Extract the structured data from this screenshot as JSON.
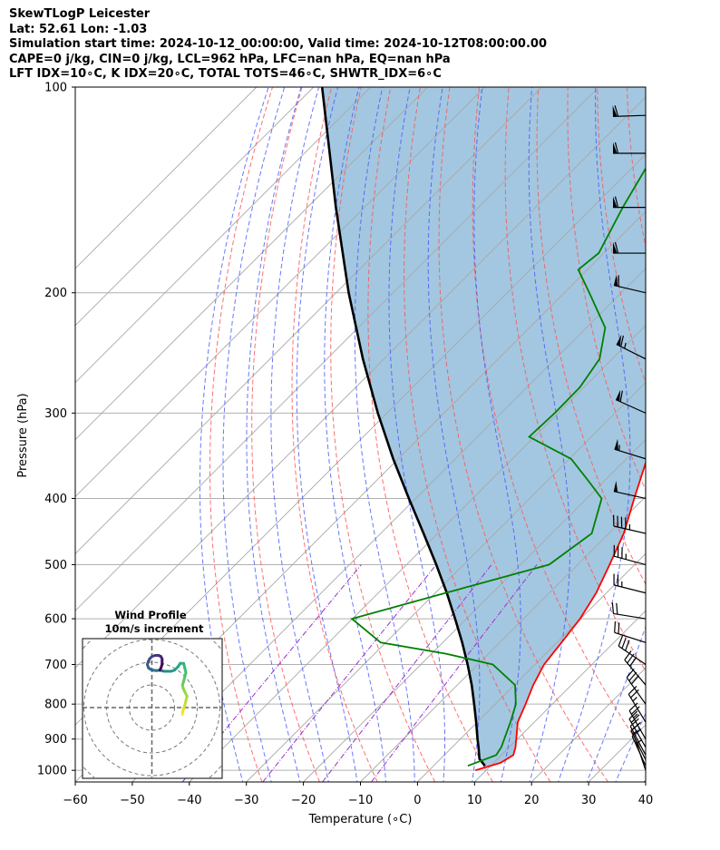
{
  "title": {
    "line1": "SkewTLogP Leicester",
    "line2": "Lat: 52.61   Lon: -1.03",
    "line3": "Simulation start time: 2024-10-12_00:00:00, Valid time: 2024-10-12T08:00:00.00",
    "line4": "CAPE=0 j/kg, CIN=0 j/kg, LCL=962 hPa, LFC=nan hPa, EQ=nan hPa",
    "line5": "LFT IDX=10∘C, K IDX=20∘C, TOTAL TOTS=46∘C, SHWTR_IDX=6∘C"
  },
  "chart_data": {
    "type": "skew-t log-p",
    "xlabel": "Temperature (∘C)",
    "ylabel": "Pressure (hPa)",
    "x_ticks": [
      "−60",
      "−50",
      "−40",
      "−30",
      "−20",
      "−10",
      "0",
      "10",
      "20",
      "30",
      "40"
    ],
    "x_tick_values": [
      -60,
      -50,
      -40,
      -30,
      -20,
      -10,
      0,
      10,
      20,
      30,
      40
    ],
    "y_ticks": [
      "100",
      "200",
      "300",
      "400",
      "500",
      "600",
      "700",
      "800",
      "900",
      "1000"
    ],
    "y_tick_values": [
      100,
      200,
      300,
      400,
      500,
      600,
      700,
      800,
      900,
      1000
    ],
    "xlim": [
      -60,
      40
    ],
    "ylim_hpa": [
      1040,
      100
    ],
    "grid": true,
    "temperature": {
      "color": "#ff0000",
      "pressure": [
        1000,
        975,
        950,
        925,
        900,
        850,
        800,
        750,
        700,
        650,
        600,
        550,
        500,
        450,
        400,
        350,
        300,
        275,
        250,
        225,
        200,
        175,
        150,
        125,
        100
      ],
      "values": [
        8.1,
        11.2,
        12.1,
        11.1,
        9.8,
        7.1,
        5.3,
        3.3,
        1.6,
        0.8,
        -0.1,
        -1.8,
        -4.4,
        -7.4,
        -11.7,
        -16.4,
        -21.7,
        -25.0,
        -29.6,
        -32.1,
        -32.6,
        -35.0,
        -37.7,
        -40.6,
        -44.4
      ]
    },
    "dewpoint": {
      "color": "#008000",
      "pressure": [
        985,
        950,
        925,
        900,
        850,
        800,
        750,
        700,
        675,
        650,
        600,
        550,
        500,
        450,
        400,
        375,
        350,
        325,
        300,
        275,
        250,
        225,
        200,
        185,
        175,
        150,
        125,
        100
      ],
      "values": [
        6.0,
        9.1,
        8.6,
        7.7,
        5.8,
        3.6,
        0.1,
        -7.4,
        -17.5,
        -30.9,
        -40.1,
        -28.2,
        -15.0,
        -13.0,
        -17.4,
        -23.3,
        -29.7,
        -40.9,
        -40.6,
        -40.7,
        -42.2,
        -46.7,
        -55.6,
        -61.6,
        -60.9,
        -64.7,
        -68.6,
        -73.6
      ]
    },
    "parcel": {
      "color": "#000000",
      "pressure": [
        985,
        962,
        925,
        900,
        850,
        800,
        750,
        700,
        650,
        600,
        550,
        500,
        450,
        400,
        350,
        300,
        250,
        200,
        150,
        100
      ],
      "values": [
        9.0,
        6.8,
        4.6,
        3.0,
        -0.2,
        -3.7,
        -7.5,
        -11.8,
        -16.6,
        -22.0,
        -28.0,
        -34.8,
        -42.5,
        -51.2,
        -60.9,
        -71.6,
        -83.7,
        -97.8,
        -115.0,
        -138.5
      ]
    },
    "wind_barbs": [
      {
        "p": 1000,
        "u": -1.0,
        "v": 3.0
      },
      {
        "p": 985,
        "u": -2.5,
        "v": 5.5
      },
      {
        "p": 965,
        "u": -3.5,
        "v": 7.0
      },
      {
        "p": 950,
        "u": -4.5,
        "v": 8.5
      },
      {
        "p": 925,
        "u": -5.5,
        "v": 9.5
      },
      {
        "p": 900,
        "u": -6.0,
        "v": 10.5
      },
      {
        "p": 850,
        "u": -7.0,
        "v": 11.5
      },
      {
        "p": 800,
        "u": -8.5,
        "v": 12.0
      },
      {
        "p": 750,
        "u": -10.5,
        "v": 12.5
      },
      {
        "p": 700,
        "u": -12.5,
        "v": 8.5
      },
      {
        "p": 650,
        "u": -11.0,
        "v": 3.5
      },
      {
        "p": 600,
        "u": -9.5,
        "v": 1.5
      },
      {
        "p": 550,
        "u": -12.0,
        "v": 3.0
      },
      {
        "p": 500,
        "u": -17.0,
        "v": 4.5
      },
      {
        "p": 450,
        "u": -22.0,
        "v": 5.0
      },
      {
        "p": 400,
        "u": -25.0,
        "v": 5.5
      },
      {
        "p": 350,
        "u": -27.5,
        "v": 8.5
      },
      {
        "p": 300,
        "u": -29.0,
        "v": 13.0
      },
      {
        "p": 250,
        "u": -30.0,
        "v": 15.0
      },
      {
        "p": 200,
        "u": -30.0,
        "v": 7.0
      },
      {
        "p": 175,
        "u": -31.0,
        "v": 0.0
      },
      {
        "p": 150,
        "u": -31.0,
        "v": 0.0
      },
      {
        "p": 125,
        "u": -31.0,
        "v": 0.0
      },
      {
        "p": 110,
        "u": -30.0,
        "v": -1.0
      }
    ],
    "wind_profile_inset": {
      "title": "Wind Profile",
      "subtitle": "10m/s increment",
      "ring_increment_ms": 10,
      "rings": 4,
      "colormap": "viridis (surface → top: yellow → purple)",
      "hodograph_uv": [
        [
          13.5,
          -3.0
        ],
        [
          13.5,
          -2.0
        ],
        [
          14.0,
          -0.5
        ],
        [
          14.5,
          1.0
        ],
        [
          15.0,
          3.0
        ],
        [
          15.5,
          5.0
        ],
        [
          14.5,
          7.0
        ],
        [
          13.8,
          8.5
        ],
        [
          13.5,
          10.0
        ],
        [
          14.0,
          11.5
        ],
        [
          14.5,
          13.5
        ],
        [
          15.0,
          15.5
        ],
        [
          14.5,
          17.5
        ],
        [
          14.0,
          19.5
        ],
        [
          12.5,
          19.5
        ],
        [
          11.5,
          18.0
        ],
        [
          10.0,
          16.5
        ],
        [
          8.5,
          16.0
        ],
        [
          7.0,
          16.0
        ],
        [
          5.5,
          16.0
        ],
        [
          4.5,
          16.2
        ],
        [
          3.5,
          16.5
        ],
        [
          2.0,
          16.3
        ],
        [
          0.5,
          16.5
        ],
        [
          -0.5,
          16.8
        ],
        [
          -1.5,
          17.5
        ],
        [
          -2.0,
          19.0
        ],
        [
          -1.5,
          20.5
        ],
        [
          -1.0,
          21.5
        ],
        [
          0.0,
          22.5
        ],
        [
          1.5,
          23.0
        ],
        [
          3.0,
          23.0
        ],
        [
          4.0,
          22.5
        ],
        [
          4.5,
          21.5
        ],
        [
          4.5,
          20.5
        ],
        [
          4.5,
          19.0
        ],
        [
          4.0,
          17.5
        ],
        [
          3.5,
          16.5
        ]
      ]
    },
    "reference_lines": {
      "isotherms": "gray solid, every 10∘C",
      "dry_adiabats": "red dashed",
      "moist_adiabats": "blue dashed",
      "mixing_ratio": "purple dash-dot",
      "cape_cin_shading": "#a3c7e0"
    }
  }
}
